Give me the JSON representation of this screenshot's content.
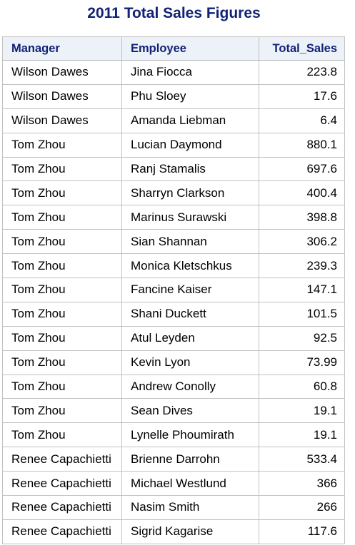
{
  "title": "2011 Total Sales Figures",
  "columns": [
    "Manager",
    "Employee",
    "Total_Sales"
  ],
  "rows": [
    {
      "manager": "Wilson Dawes",
      "employee": "Jina Fiocca",
      "total_sales": "223.8"
    },
    {
      "manager": "Wilson Dawes",
      "employee": "Phu Sloey",
      "total_sales": "17.6"
    },
    {
      "manager": "Wilson Dawes",
      "employee": "Amanda Liebman",
      "total_sales": "6.4"
    },
    {
      "manager": "Tom Zhou",
      "employee": "Lucian Daymond",
      "total_sales": "880.1"
    },
    {
      "manager": "Tom Zhou",
      "employee": "Ranj Stamalis",
      "total_sales": "697.6"
    },
    {
      "manager": "Tom Zhou",
      "employee": "Sharryn Clarkson",
      "total_sales": "400.4"
    },
    {
      "manager": "Tom Zhou",
      "employee": "Marinus Surawski",
      "total_sales": "398.8"
    },
    {
      "manager": "Tom Zhou",
      "employee": "Sian Shannan",
      "total_sales": "306.2"
    },
    {
      "manager": "Tom Zhou",
      "employee": "Monica Kletschkus",
      "total_sales": "239.3"
    },
    {
      "manager": "Tom Zhou",
      "employee": "Fancine Kaiser",
      "total_sales": "147.1"
    },
    {
      "manager": "Tom Zhou",
      "employee": "Shani Duckett",
      "total_sales": "101.5"
    },
    {
      "manager": "Tom Zhou",
      "employee": "Atul Leyden",
      "total_sales": "92.5"
    },
    {
      "manager": "Tom Zhou",
      "employee": "Kevin Lyon",
      "total_sales": "73.99"
    },
    {
      "manager": "Tom Zhou",
      "employee": "Andrew Conolly",
      "total_sales": "60.8"
    },
    {
      "manager": "Tom Zhou",
      "employee": "Sean Dives",
      "total_sales": "19.1"
    },
    {
      "manager": "Tom Zhou",
      "employee": "Lynelle Phoumirath",
      "total_sales": "19.1"
    },
    {
      "manager": "Renee Capachietti",
      "employee": "Brienne Darrohn",
      "total_sales": "533.4"
    },
    {
      "manager": "Renee Capachietti",
      "employee": "Michael Westlund",
      "total_sales": "366"
    },
    {
      "manager": "Renee Capachietti",
      "employee": "Nasim Smith",
      "total_sales": "266"
    },
    {
      "manager": "Renee Capachietti",
      "employee": "Sigrid Kagarise",
      "total_sales": "117.6"
    }
  ]
}
